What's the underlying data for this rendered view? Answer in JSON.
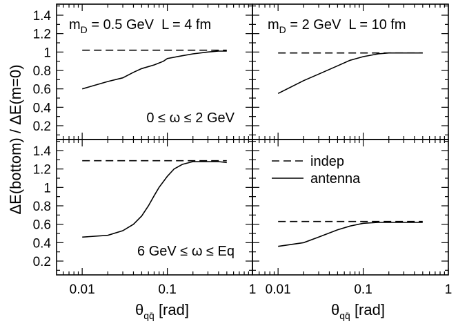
{
  "chart_data": {
    "type": "line",
    "xscale": "log",
    "xlim": [
      0.005,
      1
    ],
    "ylim": [
      0.05,
      1.52
    ],
    "xticks": [
      {
        "v": 0.01,
        "label": "0.01"
      },
      {
        "v": 0.1,
        "label": "0.1"
      },
      {
        "v": 1,
        "label": "1"
      }
    ],
    "yticks": [
      {
        "v": 0.2,
        "label": "0.2"
      },
      {
        "v": 0.4,
        "label": "0.4"
      },
      {
        "v": 0.6,
        "label": "0.6"
      },
      {
        "v": 0.8,
        "label": "0.8"
      },
      {
        "v": 1.0,
        "label": "1"
      },
      {
        "v": 1.2,
        "label": "1.2"
      },
      {
        "v": 1.4,
        "label": "1.4"
      }
    ],
    "ylabel": "ΔE(bottom) / ΔE(m=0)",
    "xlabel": {
      "main": "θ",
      "sub": "qq̄",
      "unit": " [rad]"
    },
    "legend": {
      "position": "top-right of bottom-right panel",
      "entries": [
        "indep",
        "antenna"
      ]
    },
    "panels": [
      {
        "id": "top-left",
        "title": {
          "m": "m",
          "d": "D",
          "rest": " = 0.5 GeV  L = 4 fm"
        },
        "note": "0 ≤ ω ≤ 2 GeV",
        "series": [
          {
            "name": "indep",
            "x": [
              0.01,
              0.5
            ],
            "y": [
              1.02,
              1.02
            ]
          },
          {
            "name": "antenna",
            "x": [
              0.01,
              0.02,
              0.03,
              0.04,
              0.05,
              0.07,
              0.09,
              0.1,
              0.15,
              0.2,
              0.3,
              0.4,
              0.5
            ],
            "y": [
              0.6,
              0.68,
              0.72,
              0.78,
              0.82,
              0.86,
              0.9,
              0.93,
              0.96,
              0.98,
              1.0,
              1.01,
              1.01
            ]
          }
        ]
      },
      {
        "id": "top-right",
        "title": {
          "m": "m",
          "d": "D",
          "rest": " = 2 GeV  L = 10 fm"
        },
        "note": "",
        "series": [
          {
            "name": "indep",
            "x": [
              0.01,
              0.5
            ],
            "y": [
              0.99,
              0.99
            ]
          },
          {
            "name": "antenna",
            "x": [
              0.01,
              0.02,
              0.03,
              0.05,
              0.07,
              0.1,
              0.15,
              0.2,
              0.3,
              0.4,
              0.5
            ],
            "y": [
              0.55,
              0.69,
              0.76,
              0.85,
              0.91,
              0.95,
              0.98,
              0.99,
              0.99,
              0.99,
              0.99
            ]
          }
        ]
      },
      {
        "id": "bottom-left",
        "title": null,
        "note": "6 GeV ≤ ω ≤ Eq",
        "series": [
          {
            "name": "indep",
            "x": [
              0.01,
              0.5
            ],
            "y": [
              1.29,
              1.29
            ]
          },
          {
            "name": "antenna",
            "x": [
              0.01,
              0.02,
              0.03,
              0.04,
              0.05,
              0.06,
              0.07,
              0.08,
              0.1,
              0.12,
              0.15,
              0.2,
              0.25,
              0.3,
              0.4,
              0.5
            ],
            "y": [
              0.46,
              0.48,
              0.53,
              0.6,
              0.69,
              0.8,
              0.91,
              1.0,
              1.12,
              1.2,
              1.25,
              1.28,
              1.28,
              1.28,
              1.28,
              1.27
            ]
          }
        ]
      },
      {
        "id": "bottom-right",
        "title": null,
        "note": "",
        "series": [
          {
            "name": "indep",
            "x": [
              0.01,
              0.5
            ],
            "y": [
              0.63,
              0.63
            ]
          },
          {
            "name": "antenna",
            "x": [
              0.01,
              0.02,
              0.03,
              0.05,
              0.07,
              0.1,
              0.15,
              0.2,
              0.3,
              0.5
            ],
            "y": [
              0.36,
              0.4,
              0.46,
              0.54,
              0.58,
              0.61,
              0.62,
              0.62,
              0.62,
              0.62
            ]
          }
        ]
      }
    ]
  }
}
